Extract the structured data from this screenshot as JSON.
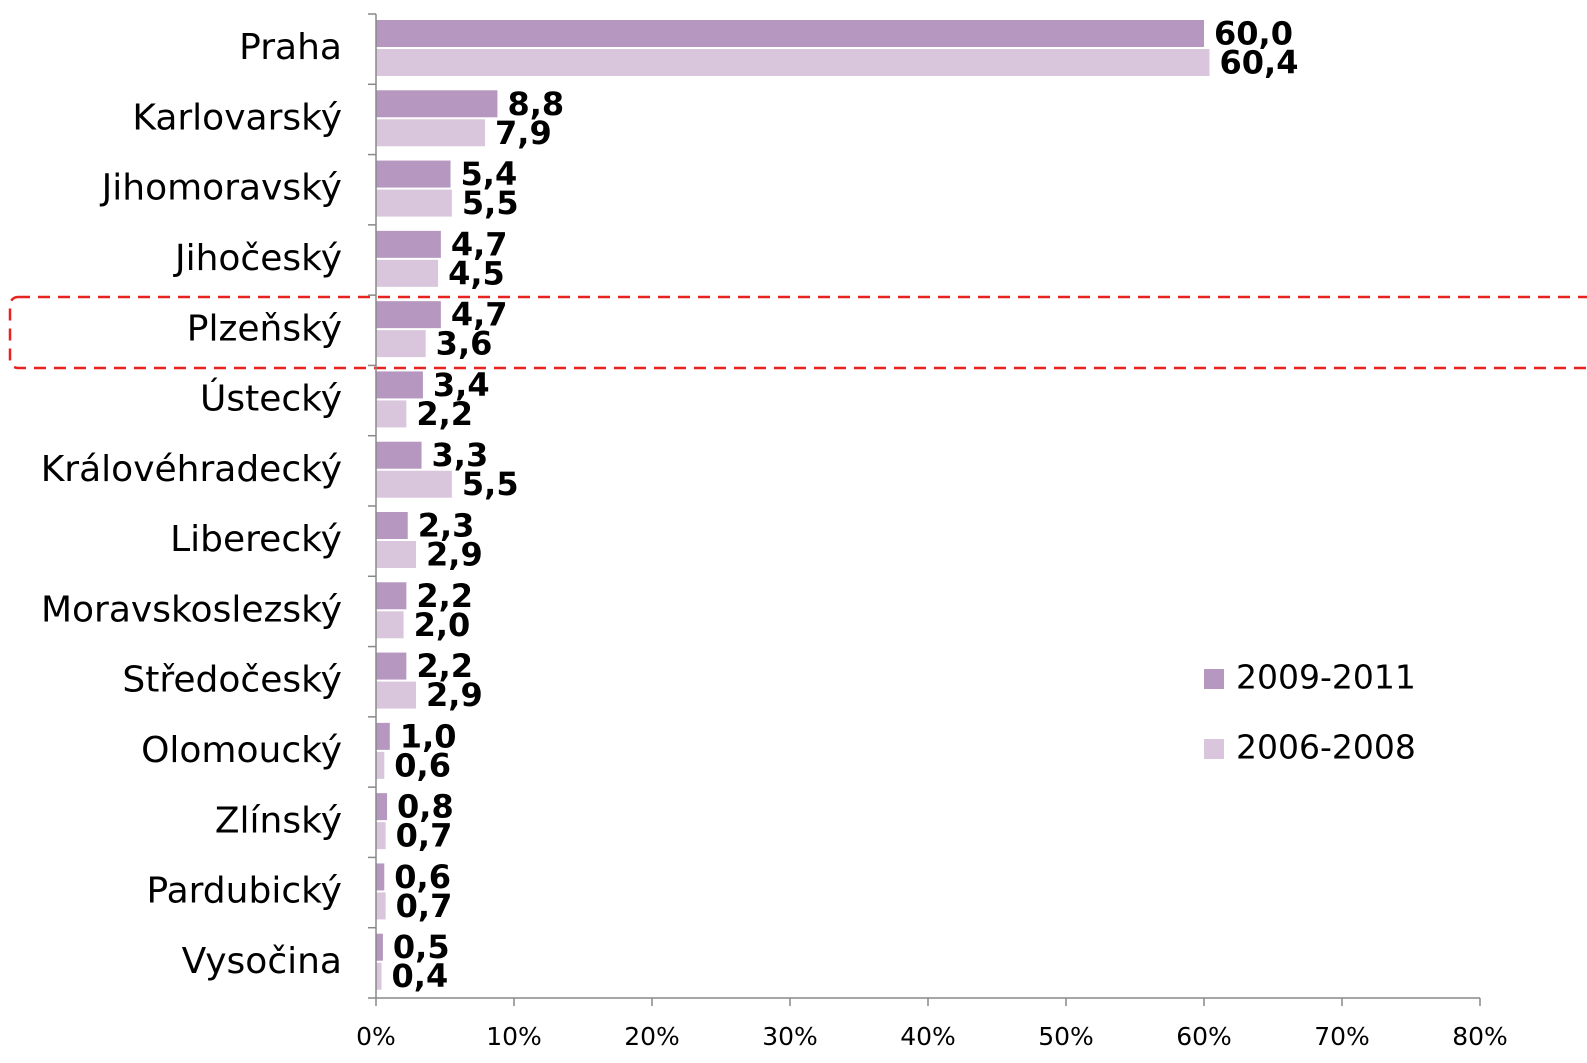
{
  "chart_data": {
    "type": "bar",
    "orientation": "horizontal",
    "categories": [
      "Praha",
      "Karlovarský",
      "Jihomoravský",
      "Jihočeský",
      "Plzeňský",
      "Ústecký",
      "Královéhradecký",
      "Liberecký",
      "Moravskoslezský",
      "Středočeský",
      "Olomoucký",
      "Zlínský",
      "Pardubický",
      "Vysočina"
    ],
    "series": [
      {
        "name": "2009-2011",
        "color": "#b597c0",
        "values": [
          60.0,
          8.8,
          5.4,
          4.7,
          4.7,
          3.4,
          3.3,
          2.3,
          2.2,
          2.2,
          1.0,
          0.8,
          0.6,
          0.5
        ],
        "value_labels": [
          "60,0",
          "8,8",
          "5,4",
          "4,7",
          "4,7",
          "3,4",
          "3,3",
          "2,3",
          "2,2",
          "2,2",
          "1,0",
          "0,8",
          "0,6",
          "0,5"
        ]
      },
      {
        "name": "2006-2008",
        "color": "#d9c6dd",
        "values": [
          60.4,
          7.9,
          5.5,
          4.5,
          3.6,
          2.2,
          5.5,
          2.9,
          2.0,
          2.9,
          0.6,
          0.7,
          0.7,
          0.4
        ],
        "value_labels": [
          "60,4",
          "7,9",
          "5,5",
          "4,5",
          "3,6",
          "2,2",
          "5,5",
          "2,9",
          "2,0",
          "2,9",
          "0,6",
          "0,7",
          "0,7",
          "0,4"
        ]
      }
    ],
    "xlim": [
      0,
      80
    ],
    "xticks": [
      {
        "value": 0,
        "label": "0%"
      },
      {
        "value": 10,
        "label": "10%"
      },
      {
        "value": 20,
        "label": "20%"
      },
      {
        "value": 30,
        "label": "30%"
      },
      {
        "value": 40,
        "label": "40%"
      },
      {
        "value": 50,
        "label": "50%"
      },
      {
        "value": 60,
        "label": "60%"
      },
      {
        "value": 70,
        "label": "70%"
      },
      {
        "value": 80,
        "label": "80%"
      }
    ],
    "grid": false,
    "legend": "right"
  }
}
